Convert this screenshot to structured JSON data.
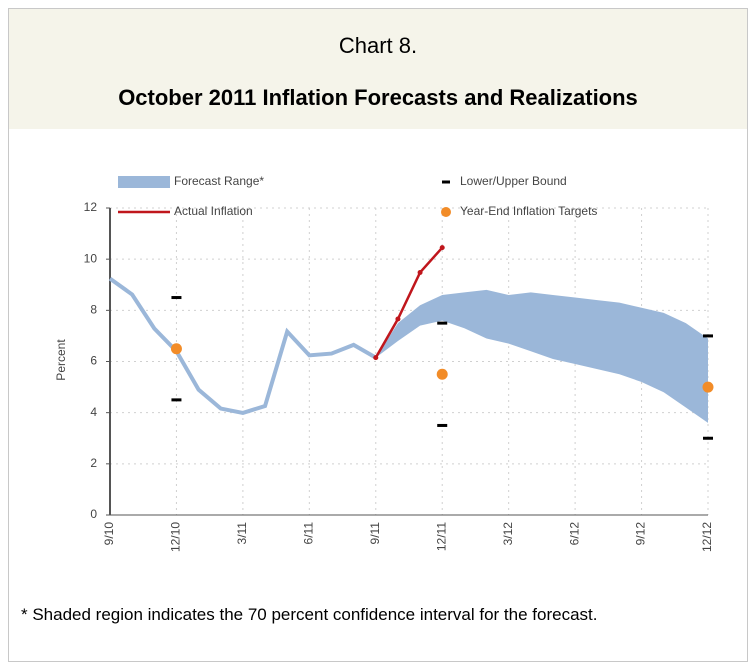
{
  "chart_data": {
    "type": "line",
    "title": "Chart 8.",
    "subtitle": "October 2011 Inflation Forecasts and Realizations",
    "y_label": "Percent",
    "note": "* Shaded region indicates the 70 percent confidence interval for the forecast.",
    "categories": [
      "9/10",
      null,
      null,
      "12/10",
      null,
      null,
      "3/11",
      null,
      null,
      "6/11",
      null,
      null,
      "9/11",
      null,
      null,
      "12/11",
      null,
      null,
      "3/12",
      null,
      null,
      "6/12",
      null,
      null,
      "9/12",
      null,
      null,
      "12/12"
    ],
    "ylim": [
      0,
      12
    ],
    "yticks": [
      0,
      2,
      4,
      6,
      8,
      10,
      12
    ],
    "grid": true,
    "series": [
      {
        "name": "Forecast Range*",
        "color": "#9bb7d9",
        "values": [
          9.24,
          8.62,
          7.29,
          6.4,
          4.9,
          4.16,
          3.99,
          4.26,
          7.17,
          6.24,
          6.31,
          6.65,
          6.15,
          null,
          null,
          null,
          null,
          null,
          null,
          null,
          null,
          null,
          null,
          null,
          null,
          null,
          null,
          null
        ],
        "lower": [
          null,
          null,
          null,
          null,
          null,
          null,
          null,
          null,
          null,
          null,
          null,
          null,
          6.15,
          6.8,
          7.4,
          7.6,
          7.3,
          6.9,
          6.7,
          6.4,
          6.1,
          5.9,
          5.7,
          5.5,
          5.2,
          4.8,
          4.2,
          3.6
        ],
        "upper": [
          null,
          null,
          null,
          null,
          null,
          null,
          null,
          null,
          null,
          null,
          null,
          null,
          6.15,
          7.5,
          8.2,
          8.6,
          8.7,
          8.8,
          8.6,
          8.7,
          8.6,
          8.5,
          8.4,
          8.3,
          8.1,
          7.9,
          7.5,
          6.9
        ]
      },
      {
        "name": "Actual Inflation",
        "color": "#c0161c",
        "values": [
          null,
          null,
          null,
          null,
          null,
          null,
          null,
          null,
          null,
          null,
          null,
          null,
          6.15,
          7.66,
          9.48,
          10.45,
          null,
          null,
          null,
          null,
          null,
          null,
          null,
          null,
          null,
          null,
          null,
          null
        ]
      },
      {
        "name": "Lower/Upper Bound",
        "color": "#000000",
        "lower": [
          null,
          null,
          null,
          4.5,
          null,
          null,
          null,
          null,
          null,
          null,
          null,
          null,
          null,
          null,
          null,
          3.5,
          null,
          null,
          null,
          null,
          null,
          null,
          null,
          null,
          null,
          null,
          null,
          3
        ],
        "upper": [
          null,
          null,
          null,
          8.5,
          null,
          null,
          null,
          null,
          null,
          null,
          null,
          null,
          null,
          null,
          null,
          7.5,
          null,
          null,
          null,
          null,
          null,
          null,
          null,
          null,
          null,
          null,
          null,
          7
        ]
      },
      {
        "name": "Year-End Inflation Targets",
        "color": "#f28c28",
        "values": [
          null,
          null,
          null,
          6.5,
          null,
          null,
          null,
          null,
          null,
          null,
          null,
          null,
          null,
          null,
          null,
          5.5,
          null,
          null,
          null,
          null,
          null,
          null,
          null,
          null,
          null,
          null,
          null,
          5
        ]
      }
    ]
  }
}
